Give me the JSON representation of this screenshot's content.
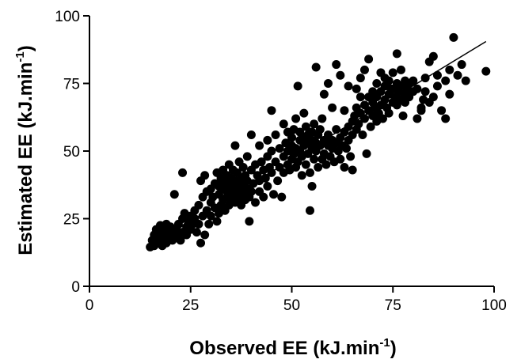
{
  "chart_data": {
    "type": "scatter",
    "xlabel": {
      "main": "Observed EE (kJ.min",
      "sup": "-1",
      "close": ")"
    },
    "ylabel": {
      "main": "Estimated EE (kJ.min",
      "sup": "-1",
      "close": ")"
    },
    "xlim": [
      0,
      100
    ],
    "ylim": [
      0,
      100
    ],
    "xticks": [
      0,
      25,
      50,
      75,
      100
    ],
    "yticks": [
      0,
      25,
      50,
      75,
      100
    ],
    "grid": false,
    "legend": "none",
    "marker_color": "#000000",
    "fit_line": {
      "x": [
        15,
        98
      ],
      "y": [
        15,
        90.5
      ]
    },
    "points": [
      [
        15,
        14.5
      ],
      [
        15.5,
        17
      ],
      [
        16,
        15
      ],
      [
        16,
        19
      ],
      [
        16.5,
        21
      ],
      [
        17,
        16
      ],
      [
        17,
        18
      ],
      [
        17.5,
        20
      ],
      [
        17.5,
        22.5
      ],
      [
        18,
        15
      ],
      [
        18,
        17
      ],
      [
        18.5,
        19
      ],
      [
        18.5,
        21
      ],
      [
        19,
        16
      ],
      [
        19,
        23
      ],
      [
        19.5,
        18
      ],
      [
        20,
        20
      ],
      [
        20,
        22
      ],
      [
        20.5,
        17
      ],
      [
        21,
        19
      ],
      [
        21,
        34
      ],
      [
        21.5,
        21
      ],
      [
        22,
        18
      ],
      [
        22,
        23
      ],
      [
        22.5,
        17
      ],
      [
        23,
        20
      ],
      [
        23,
        25
      ],
      [
        23,
        42
      ],
      [
        23.5,
        27
      ],
      [
        24,
        22
      ],
      [
        24,
        19
      ],
      [
        24.5,
        24
      ],
      [
        25,
        26
      ],
      [
        25,
        21
      ],
      [
        25.5,
        23
      ],
      [
        26,
        25
      ],
      [
        26,
        28
      ],
      [
        26.5,
        20
      ],
      [
        27,
        23
      ],
      [
        27,
        30
      ],
      [
        27.5,
        16
      ],
      [
        27.5,
        39
      ],
      [
        28,
        26
      ],
      [
        28,
        33
      ],
      [
        28.5,
        19
      ],
      [
        28.5,
        41
      ],
      [
        29,
        28
      ],
      [
        29,
        35
      ],
      [
        29.5,
        23
      ],
      [
        30,
        26
      ],
      [
        30,
        31
      ],
      [
        30,
        36
      ],
      [
        30.5,
        33
      ],
      [
        31,
        29
      ],
      [
        31,
        38
      ],
      [
        31.5,
        24
      ],
      [
        31.5,
        42
      ],
      [
        32,
        27
      ],
      [
        32,
        34
      ],
      [
        32,
        37
      ],
      [
        32.5,
        30
      ],
      [
        32.5,
        40
      ],
      [
        33,
        32
      ],
      [
        33,
        36
      ],
      [
        33,
        39
      ],
      [
        33,
        43
      ],
      [
        33.5,
        28
      ],
      [
        34,
        33
      ],
      [
        34,
        35
      ],
      [
        34,
        38
      ],
      [
        34,
        41
      ],
      [
        34.5,
        30
      ],
      [
        34.5,
        45
      ],
      [
        35,
        32
      ],
      [
        35,
        37
      ],
      [
        35,
        40
      ],
      [
        35.5,
        34
      ],
      [
        35.5,
        43
      ],
      [
        36,
        31
      ],
      [
        36,
        36
      ],
      [
        36,
        39
      ],
      [
        36,
        52
      ],
      [
        36.5,
        35
      ],
      [
        36.5,
        42
      ],
      [
        37,
        33
      ],
      [
        37,
        38
      ],
      [
        37,
        46
      ],
      [
        37.5,
        30
      ],
      [
        37.5,
        40
      ],
      [
        38,
        34
      ],
      [
        38,
        37
      ],
      [
        38,
        44
      ],
      [
        38.5,
        32
      ],
      [
        38.5,
        41
      ],
      [
        39,
        36
      ],
      [
        39,
        39
      ],
      [
        39,
        48
      ],
      [
        39.5,
        33
      ],
      [
        39.5,
        24
      ],
      [
        40,
        35
      ],
      [
        40,
        43
      ],
      [
        40,
        56
      ],
      [
        40.5,
        38
      ],
      [
        41,
        31
      ],
      [
        41,
        45
      ],
      [
        41.5,
        41
      ],
      [
        42,
        35
      ],
      [
        42,
        39
      ],
      [
        42,
        52
      ],
      [
        42.5,
        46
      ],
      [
        43,
        33
      ],
      [
        43,
        43
      ],
      [
        43.5,
        40
      ],
      [
        44,
        37
      ],
      [
        44,
        48
      ],
      [
        44,
        54
      ],
      [
        44.5,
        44
      ],
      [
        45,
        42
      ],
      [
        45,
        50
      ],
      [
        45,
        65
      ],
      [
        45.5,
        34
      ],
      [
        46,
        46
      ],
      [
        46,
        56
      ],
      [
        46.5,
        39
      ],
      [
        47,
        44
      ],
      [
        47,
        51
      ],
      [
        47.5,
        33
      ],
      [
        48,
        42
      ],
      [
        48,
        48
      ],
      [
        48,
        60
      ],
      [
        48.5,
        53
      ],
      [
        49,
        45
      ],
      [
        49,
        50
      ],
      [
        49,
        57
      ],
      [
        49.5,
        43
      ],
      [
        50,
        47
      ],
      [
        50,
        52
      ],
      [
        50,
        55
      ],
      [
        50.5,
        49
      ],
      [
        50.5,
        58
      ],
      [
        51,
        44
      ],
      [
        51,
        51
      ],
      [
        51,
        62
      ],
      [
        51.5,
        46
      ],
      [
        51.5,
        74
      ],
      [
        52,
        50
      ],
      [
        52,
        54
      ],
      [
        52,
        57
      ],
      [
        52.5,
        41
      ],
      [
        52.5,
        48
      ],
      [
        53,
        52
      ],
      [
        53,
        55
      ],
      [
        53,
        64
      ],
      [
        53.5,
        45
      ],
      [
        53.5,
        59
      ],
      [
        54,
        49
      ],
      [
        54,
        53
      ],
      [
        54,
        56
      ],
      [
        54.5,
        42
      ],
      [
        54.5,
        28
      ],
      [
        55,
        51
      ],
      [
        55,
        54
      ],
      [
        55,
        57
      ],
      [
        55,
        37
      ],
      [
        55.5,
        47
      ],
      [
        55.5,
        60
      ],
      [
        56,
        50
      ],
      [
        56,
        53
      ],
      [
        56,
        81
      ],
      [
        56.5,
        44
      ],
      [
        56.5,
        56
      ],
      [
        57,
        52
      ],
      [
        57,
        58
      ],
      [
        57.5,
        47
      ],
      [
        57.5,
        62
      ],
      [
        58,
        49
      ],
      [
        58,
        54
      ],
      [
        58,
        71
      ],
      [
        58.5,
        45
      ],
      [
        59,
        52
      ],
      [
        59,
        56
      ],
      [
        59,
        75
      ],
      [
        59.5,
        48
      ],
      [
        60,
        51
      ],
      [
        60,
        54
      ],
      [
        60,
        66
      ],
      [
        60.5,
        46
      ],
      [
        61,
        53
      ],
      [
        61,
        58
      ],
      [
        61,
        82
      ],
      [
        61.5,
        50
      ],
      [
        62,
        47
      ],
      [
        62,
        55
      ],
      [
        62,
        78
      ],
      [
        62.5,
        52
      ],
      [
        63,
        44
      ],
      [
        63,
        57
      ],
      [
        63,
        65
      ],
      [
        63.5,
        51
      ],
      [
        64,
        54
      ],
      [
        64,
        59
      ],
      [
        64,
        74
      ],
      [
        64.5,
        48
      ],
      [
        65,
        56
      ],
      [
        65,
        61
      ],
      [
        65,
        43
      ],
      [
        65.5,
        63
      ],
      [
        66,
        58
      ],
      [
        66,
        66
      ],
      [
        66,
        73
      ],
      [
        66.5,
        60
      ],
      [
        67,
        64
      ],
      [
        67,
        70
      ],
      [
        67,
        77
      ],
      [
        67.5,
        56
      ],
      [
        68,
        62
      ],
      [
        68,
        67
      ],
      [
        68,
        80
      ],
      [
        68.5,
        49
      ],
      [
        69,
        65
      ],
      [
        69,
        70
      ],
      [
        69,
        84
      ],
      [
        69.5,
        59
      ],
      [
        70,
        63
      ],
      [
        70,
        68
      ],
      [
        70,
        72
      ],
      [
        70.5,
        66
      ],
      [
        71,
        61
      ],
      [
        71,
        70
      ],
      [
        71,
        75
      ],
      [
        71.5,
        64
      ],
      [
        72,
        67
      ],
      [
        72,
        72
      ],
      [
        72,
        79
      ],
      [
        72.5,
        62
      ],
      [
        73,
        69
      ],
      [
        73,
        74
      ],
      [
        73,
        77
      ],
      [
        73.5,
        66
      ],
      [
        74,
        71
      ],
      [
        74,
        76
      ],
      [
        74,
        64
      ],
      [
        74.5,
        73
      ],
      [
        75,
        68
      ],
      [
        75,
        73
      ],
      [
        75,
        79
      ],
      [
        75.5,
        70
      ],
      [
        76,
        67
      ],
      [
        76,
        75
      ],
      [
        76,
        86
      ],
      [
        76.5,
        72
      ],
      [
        77,
        69
      ],
      [
        77,
        74
      ],
      [
        77,
        80
      ],
      [
        77.5,
        63
      ],
      [
        78,
        71
      ],
      [
        78,
        76
      ],
      [
        78,
        68
      ],
      [
        78.5,
        73
      ],
      [
        79,
        70
      ],
      [
        79,
        75
      ],
      [
        80,
        72
      ],
      [
        80,
        76
      ],
      [
        81,
        62
      ],
      [
        81,
        73
      ],
      [
        82,
        66
      ],
      [
        82,
        65
      ],
      [
        82.5,
        69
      ],
      [
        83,
        72
      ],
      [
        83,
        77
      ],
      [
        84,
        68
      ],
      [
        84,
        83
      ],
      [
        85,
        70
      ],
      [
        85,
        85
      ],
      [
        86,
        74
      ],
      [
        86,
        78
      ],
      [
        87,
        65
      ],
      [
        88,
        62
      ],
      [
        88,
        76
      ],
      [
        89,
        71
      ],
      [
        89,
        80
      ],
      [
        90,
        92
      ],
      [
        91,
        78
      ],
      [
        92,
        82
      ],
      [
        93,
        76
      ],
      [
        98,
        79.5
      ]
    ]
  }
}
